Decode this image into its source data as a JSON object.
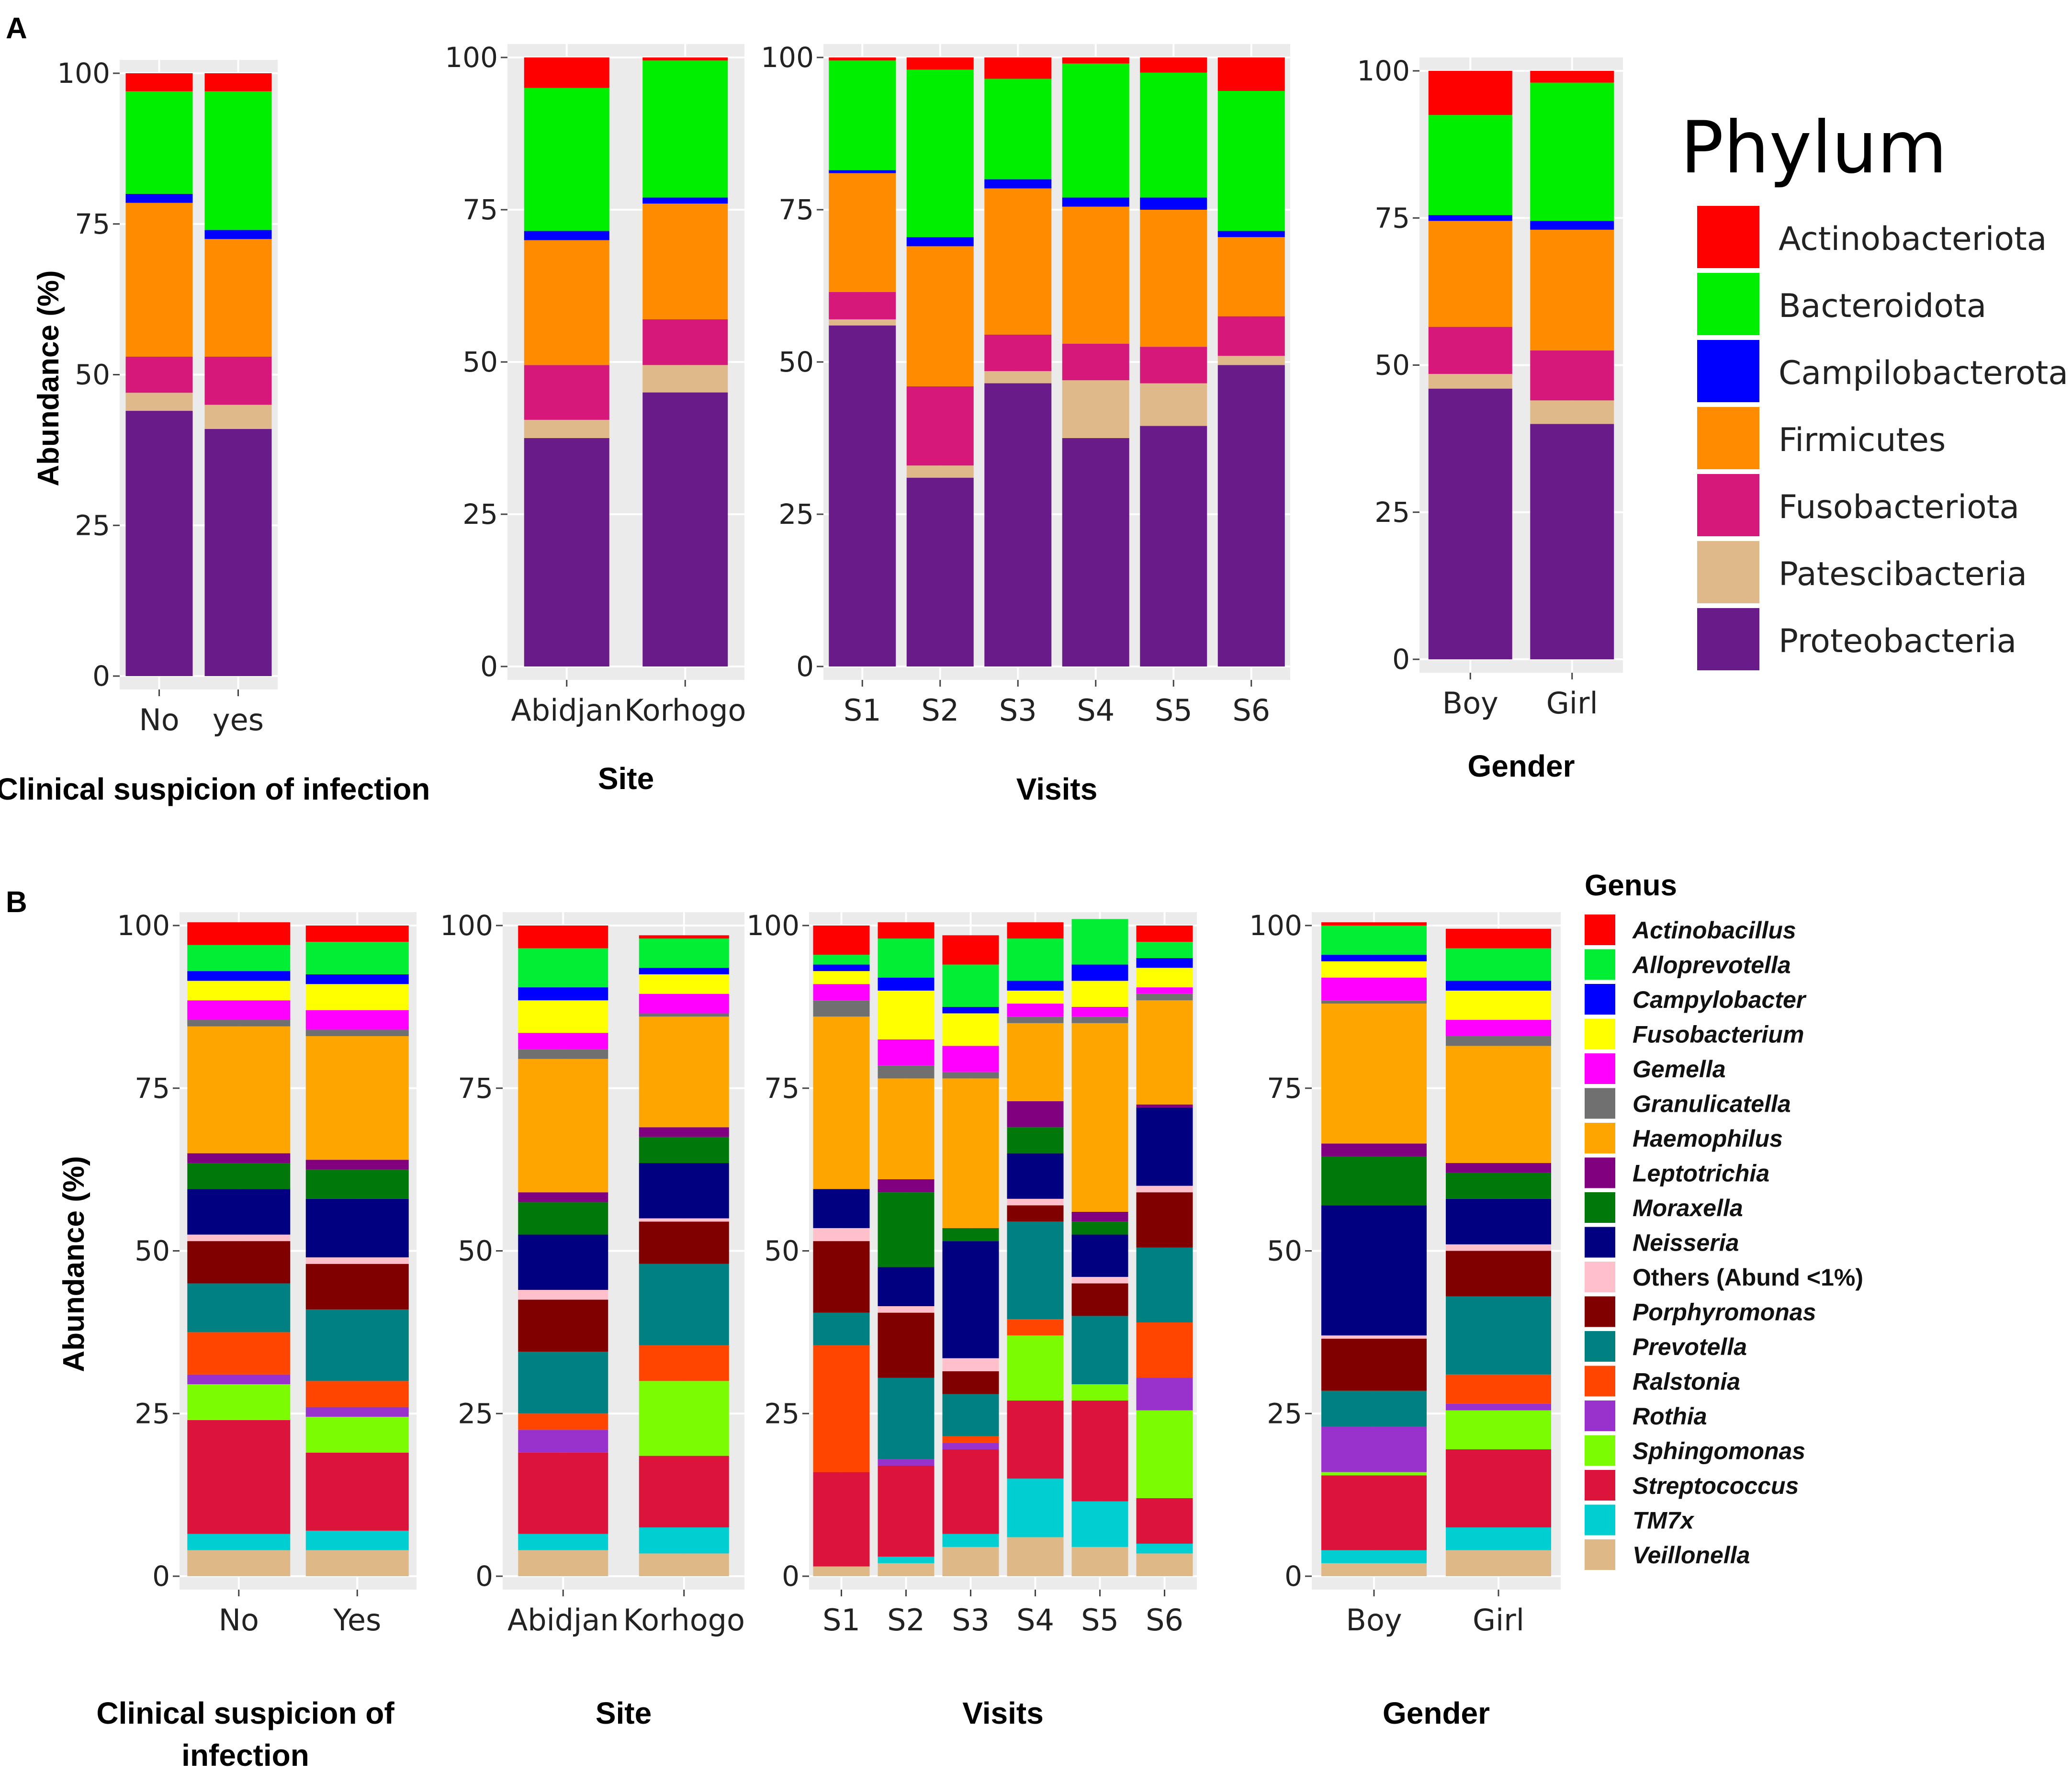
{
  "panels": {
    "a": "A",
    "b": "B"
  },
  "y_axis_label": "Abundance (%)",
  "y_ticks": [
    "0",
    "25",
    "50",
    "75",
    "100"
  ],
  "legend_a": {
    "title": "Phylum",
    "items": [
      {
        "label": "Actinobacteriota",
        "color": "#ff0000"
      },
      {
        "label": "Bacteroidota",
        "color": "#00ee00"
      },
      {
        "label": "Campilobacterota",
        "color": "#0000ff"
      },
      {
        "label": "Firmicutes",
        "color": "#ff8c00"
      },
      {
        "label": "Fusobacteriota",
        "color": "#d6187a"
      },
      {
        "label": "Patescibacteria",
        "color": "#dfb98a"
      },
      {
        "label": "Proteobacteria",
        "color": "#6a1b8a"
      }
    ]
  },
  "legend_b": {
    "title": "Genus",
    "items": [
      {
        "label": "Actinobacillus",
        "color": "#ff0000",
        "italic": true
      },
      {
        "label": "Alloprevotella",
        "color": "#00ee33",
        "italic": true
      },
      {
        "label": "Campylobacter",
        "color": "#0000ff",
        "italic": true
      },
      {
        "label": "Fusobacterium",
        "color": "#ffff00",
        "italic": true
      },
      {
        "label": "Gemella",
        "color": "#ff00ff",
        "italic": true
      },
      {
        "label": "Granulicatella",
        "color": "#707070",
        "italic": true
      },
      {
        "label": "Haemophilus",
        "color": "#ffa500",
        "italic": true
      },
      {
        "label": "Leptotrichia",
        "color": "#800080",
        "italic": true
      },
      {
        "label": "Moraxella",
        "color": "#00780a",
        "italic": true
      },
      {
        "label": "Neisseria",
        "color": "#000080",
        "italic": true
      },
      {
        "label": "Others (Abund <1%)",
        "color": "#ffc0cb",
        "italic": false
      },
      {
        "label": "Porphyromonas",
        "color": "#800000",
        "italic": true
      },
      {
        "label": "Prevotella",
        "color": "#008080",
        "italic": true
      },
      {
        "label": "Ralstonia",
        "color": "#ff4500",
        "italic": true
      },
      {
        "label": "Rothia",
        "color": "#9932cc",
        "italic": true
      },
      {
        "label": "Sphingomonas",
        "color": "#7cfc00",
        "italic": true
      },
      {
        "label": "Streptococcus",
        "color": "#dc143c",
        "italic": true
      },
      {
        "label": "TM7x",
        "color": "#00ced1",
        "italic": true
      },
      {
        "label": "Veillonella",
        "color": "#deb887",
        "italic": true
      }
    ]
  },
  "chart_data": [
    {
      "type": "bar",
      "stacked": true,
      "panel": "A",
      "title": "",
      "xlabel": "Clinical suspicion of infection",
      "ylabel": "Abundance (%)",
      "ylim": [
        0,
        100
      ],
      "categories": [
        "No",
        "yes"
      ],
      "series": [
        {
          "name": "Proteobacteria",
          "values": [
            44,
            41
          ]
        },
        {
          "name": "Patescibacteria",
          "values": [
            3,
            4
          ]
        },
        {
          "name": "Fusobacteriota",
          "values": [
            6,
            8
          ]
        },
        {
          "name": "Firmicutes",
          "values": [
            25.5,
            19.5
          ]
        },
        {
          "name": "Campilobacterota",
          "values": [
            1.5,
            1.5
          ]
        },
        {
          "name": "Bacteroidota",
          "values": [
            17,
            23
          ]
        },
        {
          "name": "Actinobacteriota",
          "values": [
            3,
            3
          ]
        }
      ]
    },
    {
      "type": "bar",
      "stacked": true,
      "panel": "A",
      "title": "",
      "xlabel": "Site",
      "ylabel": "Abundance (%)",
      "ylim": [
        0,
        100
      ],
      "categories": [
        "Abidjan",
        "Korhogo"
      ],
      "series": [
        {
          "name": "Proteobacteria",
          "values": [
            37.5,
            45
          ]
        },
        {
          "name": "Patescibacteria",
          "values": [
            3,
            4.5
          ]
        },
        {
          "name": "Fusobacteriota",
          "values": [
            9,
            7.5
          ]
        },
        {
          "name": "Firmicutes",
          "values": [
            20.5,
            19
          ]
        },
        {
          "name": "Campilobacterota",
          "values": [
            1.5,
            1
          ]
        },
        {
          "name": "Bacteroidota",
          "values": [
            23.5,
            22.5
          ]
        },
        {
          "name": "Actinobacteriota",
          "values": [
            5,
            0.5
          ]
        }
      ]
    },
    {
      "type": "bar",
      "stacked": true,
      "panel": "A",
      "title": "",
      "xlabel": "Visits",
      "ylabel": "Abundance (%)",
      "ylim": [
        0,
        100
      ],
      "categories": [
        "S1",
        "S2",
        "S3",
        "S4",
        "S5",
        "S6"
      ],
      "series": [
        {
          "name": "Proteobacteria",
          "values": [
            56,
            31,
            46.5,
            37.5,
            39.5,
            49.5
          ]
        },
        {
          "name": "Patescibacteria",
          "values": [
            1,
            2,
            2,
            9.5,
            7,
            1.5
          ]
        },
        {
          "name": "Fusobacteriota",
          "values": [
            4.5,
            13,
            6,
            6,
            6,
            6.5
          ]
        },
        {
          "name": "Firmicutes",
          "values": [
            19.5,
            23,
            24,
            22.5,
            22.5,
            13
          ]
        },
        {
          "name": "Campilobacterota",
          "values": [
            0.5,
            1.5,
            1.5,
            1.5,
            2,
            1
          ]
        },
        {
          "name": "Bacteroidota",
          "values": [
            18,
            27.5,
            16.5,
            22,
            20.5,
            23
          ]
        },
        {
          "name": "Actinobacteriota",
          "values": [
            0.5,
            2,
            3.5,
            1,
            2.5,
            5.5
          ]
        }
      ]
    },
    {
      "type": "bar",
      "stacked": true,
      "panel": "A",
      "title": "",
      "xlabel": "Gender",
      "ylabel": "Abundance (%)",
      "ylim": [
        0,
        100
      ],
      "categories": [
        "Boy",
        "Girl"
      ],
      "series": [
        {
          "name": "Proteobacteria",
          "values": [
            46,
            40
          ]
        },
        {
          "name": "Patescibacteria",
          "values": [
            2.5,
            4
          ]
        },
        {
          "name": "Fusobacteriota",
          "values": [
            8,
            8.5
          ]
        },
        {
          "name": "Firmicutes",
          "values": [
            18,
            20.5
          ]
        },
        {
          "name": "Campilobacterota",
          "values": [
            1,
            1.5
          ]
        },
        {
          "name": "Bacteroidota",
          "values": [
            17,
            23.5
          ]
        },
        {
          "name": "Actinobacteriota",
          "values": [
            7.5,
            2
          ]
        }
      ]
    },
    {
      "type": "bar",
      "stacked": true,
      "panel": "B",
      "title": "",
      "xlabel": "Clinical suspicion of infection",
      "ylabel": "Abundance (%)",
      "ylim": [
        0,
        100
      ],
      "categories": [
        "No",
        "Yes"
      ],
      "series": [
        {
          "name": "Veillonella",
          "values": [
            4,
            4
          ]
        },
        {
          "name": "TM7x",
          "values": [
            2.5,
            3
          ]
        },
        {
          "name": "Streptococcus",
          "values": [
            17.5,
            12
          ]
        },
        {
          "name": "Sphingomonas",
          "values": [
            5.5,
            5.5
          ]
        },
        {
          "name": "Rothia",
          "values": [
            1.5,
            1.5
          ]
        },
        {
          "name": "Ralstonia",
          "values": [
            6.5,
            4
          ]
        },
        {
          "name": "Prevotella",
          "values": [
            7.5,
            11
          ]
        },
        {
          "name": "Porphyromonas",
          "values": [
            6.5,
            7
          ]
        },
        {
          "name": "Others (Abund <1%)",
          "values": [
            1,
            1
          ]
        },
        {
          "name": "Neisseria",
          "values": [
            7,
            9
          ]
        },
        {
          "name": "Moraxella",
          "values": [
            4,
            4.5
          ]
        },
        {
          "name": "Leptotrichia",
          "values": [
            1.5,
            1.5
          ]
        },
        {
          "name": "Haemophilus",
          "values": [
            19.5,
            19
          ]
        },
        {
          "name": "Granulicatella",
          "values": [
            1,
            1
          ]
        },
        {
          "name": "Gemella",
          "values": [
            3,
            3
          ]
        },
        {
          "name": "Fusobacterium",
          "values": [
            3,
            4
          ]
        },
        {
          "name": "Campylobacter",
          "values": [
            1.5,
            1.5
          ]
        },
        {
          "name": "Alloprevotella",
          "values": [
            4,
            5
          ]
        },
        {
          "name": "Actinobacillus",
          "values": [
            3.5,
            2.5
          ]
        }
      ]
    },
    {
      "type": "bar",
      "stacked": true,
      "panel": "B",
      "title": "",
      "xlabel": "Site",
      "ylabel": "Abundance (%)",
      "ylim": [
        0,
        100
      ],
      "categories": [
        "Abidjan",
        "Korhogo"
      ],
      "series": [
        {
          "name": "Veillonella",
          "values": [
            4,
            3.5
          ]
        },
        {
          "name": "TM7x",
          "values": [
            2.5,
            4
          ]
        },
        {
          "name": "Streptococcus",
          "values": [
            12.5,
            11
          ]
        },
        {
          "name": "Sphingomonas",
          "values": [
            0,
            11.5
          ]
        },
        {
          "name": "Rothia",
          "values": [
            3.5,
            0
          ]
        },
        {
          "name": "Ralstonia",
          "values": [
            2.5,
            5.5
          ]
        },
        {
          "name": "Prevotella",
          "values": [
            9.5,
            12.5
          ]
        },
        {
          "name": "Porphyromonas",
          "values": [
            8,
            6.5
          ]
        },
        {
          "name": "Others (Abund <1%)",
          "values": [
            1.5,
            0.5
          ]
        },
        {
          "name": "Neisseria",
          "values": [
            8.5,
            8.5
          ]
        },
        {
          "name": "Moraxella",
          "values": [
            5,
            4
          ]
        },
        {
          "name": "Leptotrichia",
          "values": [
            1.5,
            1.5
          ]
        },
        {
          "name": "Haemophilus",
          "values": [
            20.5,
            17
          ]
        },
        {
          "name": "Granulicatella",
          "values": [
            1.5,
            0.5
          ]
        },
        {
          "name": "Gemella",
          "values": [
            2.5,
            3
          ]
        },
        {
          "name": "Fusobacterium",
          "values": [
            5,
            3
          ]
        },
        {
          "name": "Campylobacter",
          "values": [
            2,
            1
          ]
        },
        {
          "name": "Alloprevotella",
          "values": [
            6,
            4.5
          ]
        },
        {
          "name": "Actinobacillus",
          "values": [
            3.5,
            0.5
          ]
        }
      ]
    },
    {
      "type": "bar",
      "stacked": true,
      "panel": "B",
      "title": "",
      "xlabel": "Visits",
      "ylabel": "Abundance (%)",
      "ylim": [
        0,
        100
      ],
      "categories": [
        "S1",
        "S2",
        "S3",
        "S4",
        "S5",
        "S6"
      ],
      "series": [
        {
          "name": "Veillonella",
          "values": [
            1.5,
            2,
            4.5,
            6,
            4.5,
            3.5
          ]
        },
        {
          "name": "TM7x",
          "values": [
            0,
            1,
            2,
            9,
            7,
            1.5
          ]
        },
        {
          "name": "Streptococcus",
          "values": [
            14.5,
            14,
            13,
            12,
            15.5,
            7
          ]
        },
        {
          "name": "Sphingomonas",
          "values": [
            0,
            0,
            0,
            10,
            2.5,
            13.5
          ]
        },
        {
          "name": "Rothia",
          "values": [
            0,
            1,
            1,
            0,
            0,
            5
          ]
        },
        {
          "name": "Ralstonia",
          "values": [
            19.5,
            0,
            1,
            2.5,
            0,
            8.5
          ]
        },
        {
          "name": "Prevotella",
          "values": [
            5,
            12.5,
            6.5,
            15,
            10.5,
            11.5
          ]
        },
        {
          "name": "Porphyromonas",
          "values": [
            11,
            10,
            3.5,
            2.5,
            5,
            8.5
          ]
        },
        {
          "name": "Others (Abund <1%)",
          "values": [
            2,
            1,
            2,
            1,
            1,
            1
          ]
        },
        {
          "name": "Neisseria",
          "values": [
            6,
            6,
            18,
            7,
            6.5,
            12
          ]
        },
        {
          "name": "Moraxella",
          "values": [
            0,
            11.5,
            2,
            4,
            2,
            0
          ]
        },
        {
          "name": "Leptotrichia",
          "values": [
            0,
            2,
            0,
            4,
            1.5,
            0.5
          ]
        },
        {
          "name": "Haemophilus",
          "values": [
            26.5,
            15.5,
            23,
            12,
            29,
            16
          ]
        },
        {
          "name": "Granulicatella",
          "values": [
            2.5,
            2,
            1,
            1,
            1,
            1
          ]
        },
        {
          "name": "Gemella",
          "values": [
            2.5,
            4,
            4,
            2,
            1.5,
            1
          ]
        },
        {
          "name": "Fusobacterium",
          "values": [
            2,
            7.5,
            5,
            2,
            4,
            3
          ]
        },
        {
          "name": "Campylobacter",
          "values": [
            1,
            2,
            1,
            1.5,
            2.5,
            1.5
          ]
        },
        {
          "name": "Alloprevotella",
          "values": [
            1.5,
            6,
            6.5,
            6.5,
            7,
            2.5
          ]
        },
        {
          "name": "Actinobacillus",
          "values": [
            4.5,
            2.5,
            4.5,
            2.5,
            0,
            2.5
          ]
        }
      ]
    },
    {
      "type": "bar",
      "stacked": true,
      "panel": "B",
      "title": "",
      "xlabel": "Gender",
      "ylabel": "Abundance (%)",
      "ylim": [
        0,
        100
      ],
      "categories": [
        "Boy",
        "Girl"
      ],
      "series": [
        {
          "name": "Veillonella",
          "values": [
            2,
            4
          ]
        },
        {
          "name": "TM7x",
          "values": [
            2,
            3.5
          ]
        },
        {
          "name": "Streptococcus",
          "values": [
            11.5,
            12
          ]
        },
        {
          "name": "Sphingomonas",
          "values": [
            0.5,
            6
          ]
        },
        {
          "name": "Rothia",
          "values": [
            7,
            1
          ]
        },
        {
          "name": "Ralstonia",
          "values": [
            0,
            4.5
          ]
        },
        {
          "name": "Prevotella",
          "values": [
            5.5,
            12
          ]
        },
        {
          "name": "Porphyromonas",
          "values": [
            8,
            7
          ]
        },
        {
          "name": "Others (Abund <1%)",
          "values": [
            0.5,
            1
          ]
        },
        {
          "name": "Neisseria",
          "values": [
            20,
            7
          ]
        },
        {
          "name": "Moraxella",
          "values": [
            7.5,
            4
          ]
        },
        {
          "name": "Leptotrichia",
          "values": [
            2,
            1.5
          ]
        },
        {
          "name": "Haemophilus",
          "values": [
            21.5,
            18
          ]
        },
        {
          "name": "Granulicatella",
          "values": [
            0.5,
            1.5
          ]
        },
        {
          "name": "Gemella",
          "values": [
            3.5,
            2.5
          ]
        },
        {
          "name": "Fusobacterium",
          "values": [
            2.5,
            4.5
          ]
        },
        {
          "name": "Campylobacter",
          "values": [
            1,
            1.5
          ]
        },
        {
          "name": "Alloprevotella",
          "values": [
            4.5,
            5
          ]
        },
        {
          "name": "Actinobacillus",
          "values": [
            0.5,
            3
          ]
        }
      ]
    }
  ]
}
